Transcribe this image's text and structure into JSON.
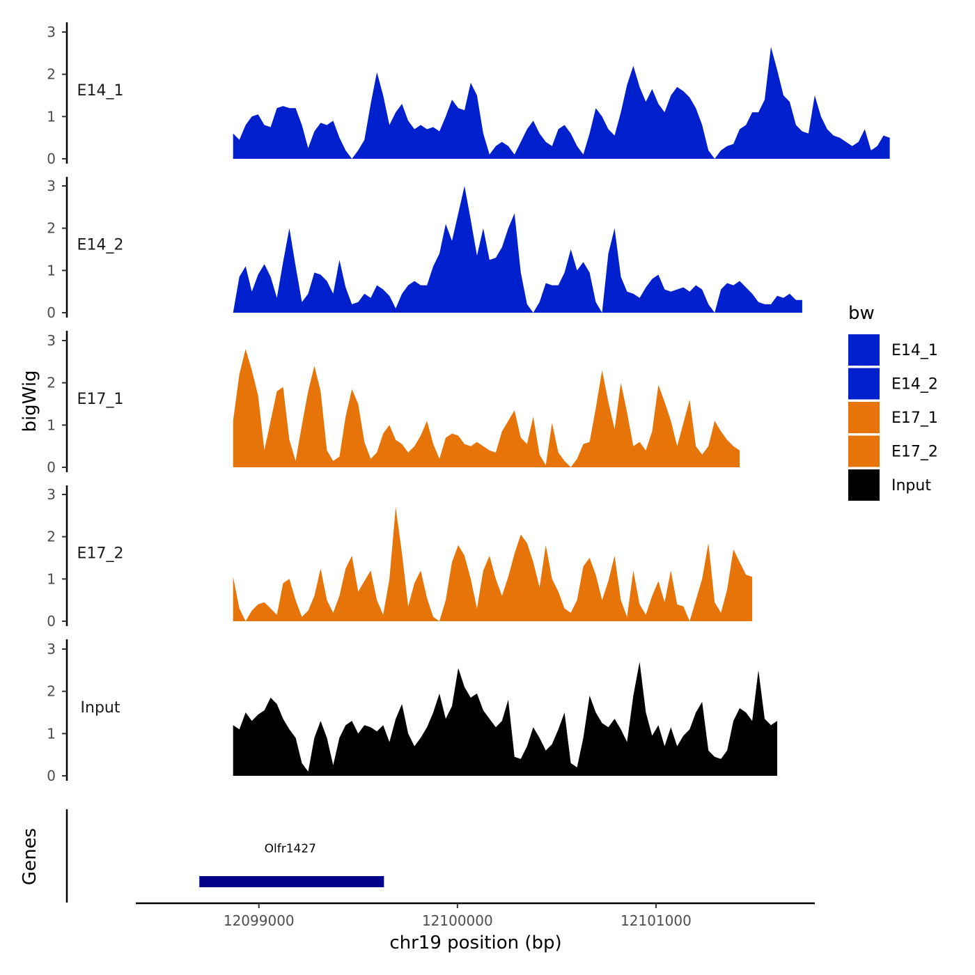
{
  "chart_data": {
    "type": "area",
    "chromosome": "chr19",
    "xlabel": "chr19 position (bp)",
    "ylabel": "bigWig",
    "xlim": [
      12098380,
      12101800
    ],
    "ylim": [
      0,
      3
    ],
    "x_ticks": [
      12099000,
      12100000,
      12101000
    ],
    "x_tick_labels": [
      "12099000",
      "12100000",
      "12101000"
    ],
    "y_ticks": [
      0,
      1,
      2,
      3
    ],
    "y_tick_labels": [
      "0",
      "1",
      "2",
      "3"
    ],
    "grid": false,
    "legend": {
      "title": "bw",
      "position": "right",
      "entries": [
        {
          "name": "E14_1",
          "color": "#0020CE"
        },
        {
          "name": "E14_2",
          "color": "#0020CE"
        },
        {
          "name": "E17_1",
          "color": "#E77408"
        },
        {
          "name": "E17_2",
          "color": "#E77408"
        },
        {
          "name": "Input",
          "color": "#000000"
        }
      ]
    },
    "data_start": 12098870,
    "bin_size": 31.5,
    "tracks": [
      {
        "name": "E14_1",
        "color": "#0020CE",
        "values": [
          0.6,
          0.45,
          0.8,
          1.0,
          1.05,
          0.8,
          0.75,
          1.2,
          1.25,
          1.2,
          1.2,
          0.8,
          0.25,
          0.65,
          0.85,
          0.8,
          0.9,
          0.5,
          0.2,
          0.0,
          0.2,
          0.45,
          1.3,
          2.05,
          1.5,
          0.8,
          1.1,
          1.3,
          0.9,
          0.7,
          0.8,
          0.7,
          0.75,
          0.65,
          1.0,
          1.4,
          1.2,
          1.15,
          1.8,
          1.5,
          0.6,
          0.1,
          0.3,
          0.4,
          0.3,
          0.1,
          0.4,
          0.7,
          0.9,
          0.6,
          0.4,
          0.3,
          0.7,
          0.8,
          0.6,
          0.3,
          0.1,
          0.6,
          1.2,
          1.0,
          0.7,
          0.55,
          1.1,
          1.75,
          2.2,
          1.7,
          1.35,
          1.65,
          1.3,
          1.1,
          1.5,
          1.7,
          1.6,
          1.45,
          1.2,
          0.8,
          0.2,
          0.0,
          0.2,
          0.3,
          0.35,
          0.7,
          0.8,
          1.1,
          1.1,
          1.4,
          2.65,
          2.1,
          1.5,
          1.35,
          0.8,
          0.65,
          0.6,
          1.5,
          1.0,
          0.7,
          0.55,
          0.5,
          0.4,
          0.3,
          0.4,
          0.7,
          0.2,
          0.3,
          0.55,
          0.5
        ]
      },
      {
        "name": "E14_2",
        "color": "#0020CE",
        "values": [
          0.0,
          0.85,
          1.1,
          0.5,
          0.9,
          1.15,
          0.85,
          0.35,
          1.2,
          2.0,
          1.1,
          0.25,
          0.45,
          0.95,
          0.9,
          0.75,
          0.45,
          1.25,
          0.6,
          0.2,
          0.25,
          0.45,
          0.35,
          0.65,
          0.55,
          0.4,
          0.1,
          0.45,
          0.65,
          0.75,
          0.65,
          0.65,
          1.1,
          1.4,
          2.1,
          1.7,
          2.35,
          3.0,
          2.2,
          1.35,
          2.0,
          1.25,
          1.3,
          1.55,
          2.0,
          2.35,
          0.95,
          0.2,
          0.0,
          0.25,
          0.7,
          0.65,
          0.65,
          0.95,
          1.5,
          1.0,
          1.2,
          0.95,
          0.25,
          0.0,
          1.4,
          2.0,
          0.85,
          0.5,
          0.45,
          0.35,
          0.6,
          0.8,
          0.9,
          0.55,
          0.5,
          0.55,
          0.6,
          0.5,
          0.65,
          0.55,
          0.2,
          0.0,
          0.55,
          0.7,
          0.65,
          0.75,
          0.6,
          0.45,
          0.25,
          0.2,
          0.2,
          0.4,
          0.35,
          0.45,
          0.3,
          0.3
        ]
      },
      {
        "name": "E17_1",
        "color": "#E77408",
        "values": [
          1.1,
          2.2,
          2.8,
          2.3,
          1.7,
          0.4,
          1.1,
          1.8,
          1.9,
          0.65,
          0.15,
          1.0,
          1.8,
          2.4,
          1.8,
          0.4,
          0.15,
          0.25,
          1.2,
          1.85,
          1.5,
          0.6,
          0.2,
          0.35,
          0.8,
          1.0,
          0.65,
          0.55,
          0.35,
          0.5,
          0.75,
          1.1,
          0.55,
          0.2,
          0.7,
          0.8,
          0.75,
          0.55,
          0.5,
          0.6,
          0.5,
          0.4,
          0.35,
          0.85,
          1.1,
          1.35,
          0.7,
          0.55,
          1.2,
          0.3,
          0.05,
          1.05,
          0.35,
          0.15,
          0.0,
          0.2,
          0.55,
          0.6,
          1.4,
          2.3,
          1.55,
          0.9,
          2.0,
          1.3,
          0.5,
          0.6,
          0.4,
          0.85,
          1.95,
          1.55,
          1.1,
          0.5,
          1.05,
          1.6,
          0.5,
          0.3,
          0.5,
          1.1,
          0.85,
          0.65,
          0.5,
          0.4
        ]
      },
      {
        "name": "E17_2",
        "color": "#E77408",
        "values": [
          1.05,
          0.3,
          0.0,
          0.25,
          0.4,
          0.45,
          0.3,
          0.15,
          0.9,
          1.0,
          0.5,
          0.1,
          0.25,
          0.6,
          1.25,
          0.5,
          0.2,
          0.6,
          1.25,
          1.55,
          0.7,
          0.95,
          1.2,
          0.5,
          0.15,
          1.0,
          2.7,
          1.6,
          0.35,
          0.9,
          1.2,
          0.55,
          0.1,
          0.0,
          0.5,
          1.4,
          1.8,
          1.55,
          1.0,
          0.3,
          1.2,
          1.55,
          1.0,
          0.6,
          1.05,
          1.6,
          2.05,
          1.85,
          1.4,
          0.8,
          1.8,
          1.0,
          0.7,
          0.3,
          0.2,
          0.5,
          1.3,
          1.5,
          1.1,
          0.5,
          0.95,
          1.55,
          0.5,
          0.1,
          1.2,
          0.4,
          0.15,
          0.6,
          0.95,
          0.45,
          1.2,
          0.4,
          0.35,
          0.0,
          0.5,
          1.0,
          1.85,
          0.45,
          0.2,
          0.75,
          1.7,
          1.4,
          1.1,
          1.05
        ]
      },
      {
        "name": "Input",
        "color": "#000000",
        "values": [
          1.2,
          1.1,
          1.5,
          1.3,
          1.45,
          1.55,
          1.85,
          1.7,
          1.35,
          1.1,
          0.9,
          0.3,
          0.1,
          0.9,
          1.3,
          0.9,
          0.25,
          0.9,
          1.2,
          1.3,
          1.0,
          1.2,
          1.15,
          1.05,
          1.2,
          0.8,
          1.35,
          1.7,
          1.0,
          0.7,
          0.9,
          1.15,
          1.5,
          1.95,
          1.35,
          1.65,
          2.55,
          2.1,
          1.85,
          1.95,
          1.55,
          1.35,
          1.15,
          1.3,
          1.8,
          0.45,
          0.4,
          0.7,
          1.15,
          0.9,
          0.6,
          0.75,
          1.1,
          1.5,
          0.3,
          0.2,
          0.9,
          1.9,
          1.5,
          1.25,
          1.15,
          1.35,
          1.1,
          0.8,
          1.9,
          2.7,
          1.5,
          0.95,
          1.2,
          0.7,
          1.15,
          0.7,
          0.95,
          1.1,
          1.5,
          1.75,
          0.6,
          0.45,
          0.4,
          0.6,
          1.3,
          1.6,
          1.5,
          1.3,
          2.5,
          1.35,
          1.2,
          1.3
        ]
      }
    ],
    "genes": {
      "panel_label": "Genes",
      "items": [
        {
          "name": "Olfr1427",
          "start": 12098700,
          "end": 12099630,
          "strand": "-",
          "color": "#00008B"
        }
      ]
    }
  }
}
